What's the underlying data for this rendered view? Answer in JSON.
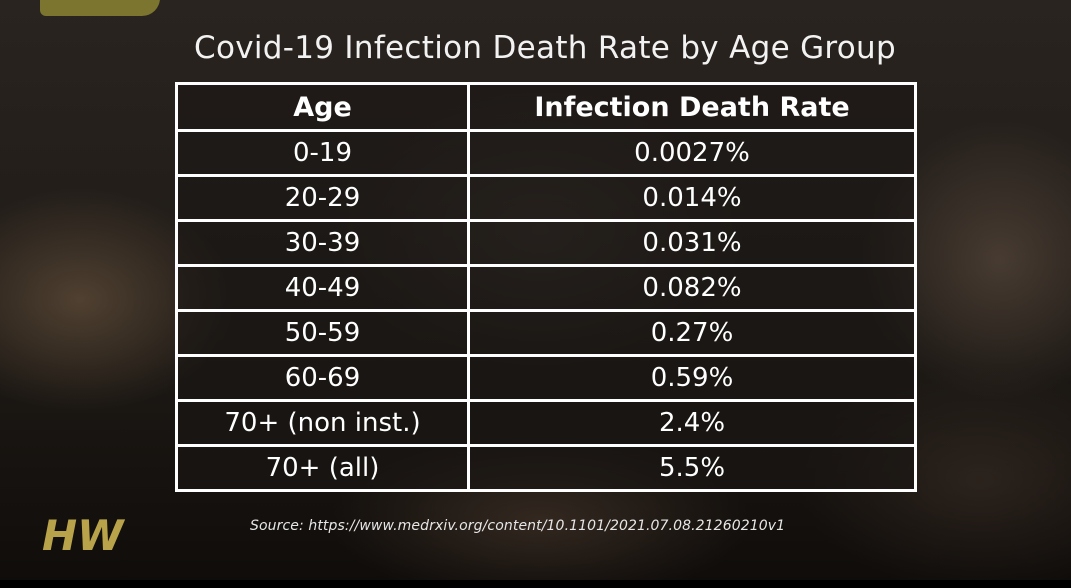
{
  "chart_data": {
    "type": "table",
    "title": "Covid-19 Infection Death Rate by Age Group",
    "columns": [
      "Age",
      "Infection Death Rate"
    ],
    "rows": [
      [
        "0-19",
        "0.0027%"
      ],
      [
        "20-29",
        "0.014%"
      ],
      [
        "30-39",
        "0.031%"
      ],
      [
        "40-49",
        "0.082%"
      ],
      [
        "50-59",
        "0.27%"
      ],
      [
        "60-69",
        "0.59%"
      ],
      [
        "70+ (non inst.)",
        "2.4%"
      ],
      [
        "70+ (all)",
        "5.5%"
      ]
    ],
    "source": "Source: https://www.medrxiv.org/content/10.1101/2021.07.08.21260210v1"
  },
  "logo": {
    "text": "HW",
    "color": "#b8a24a"
  }
}
